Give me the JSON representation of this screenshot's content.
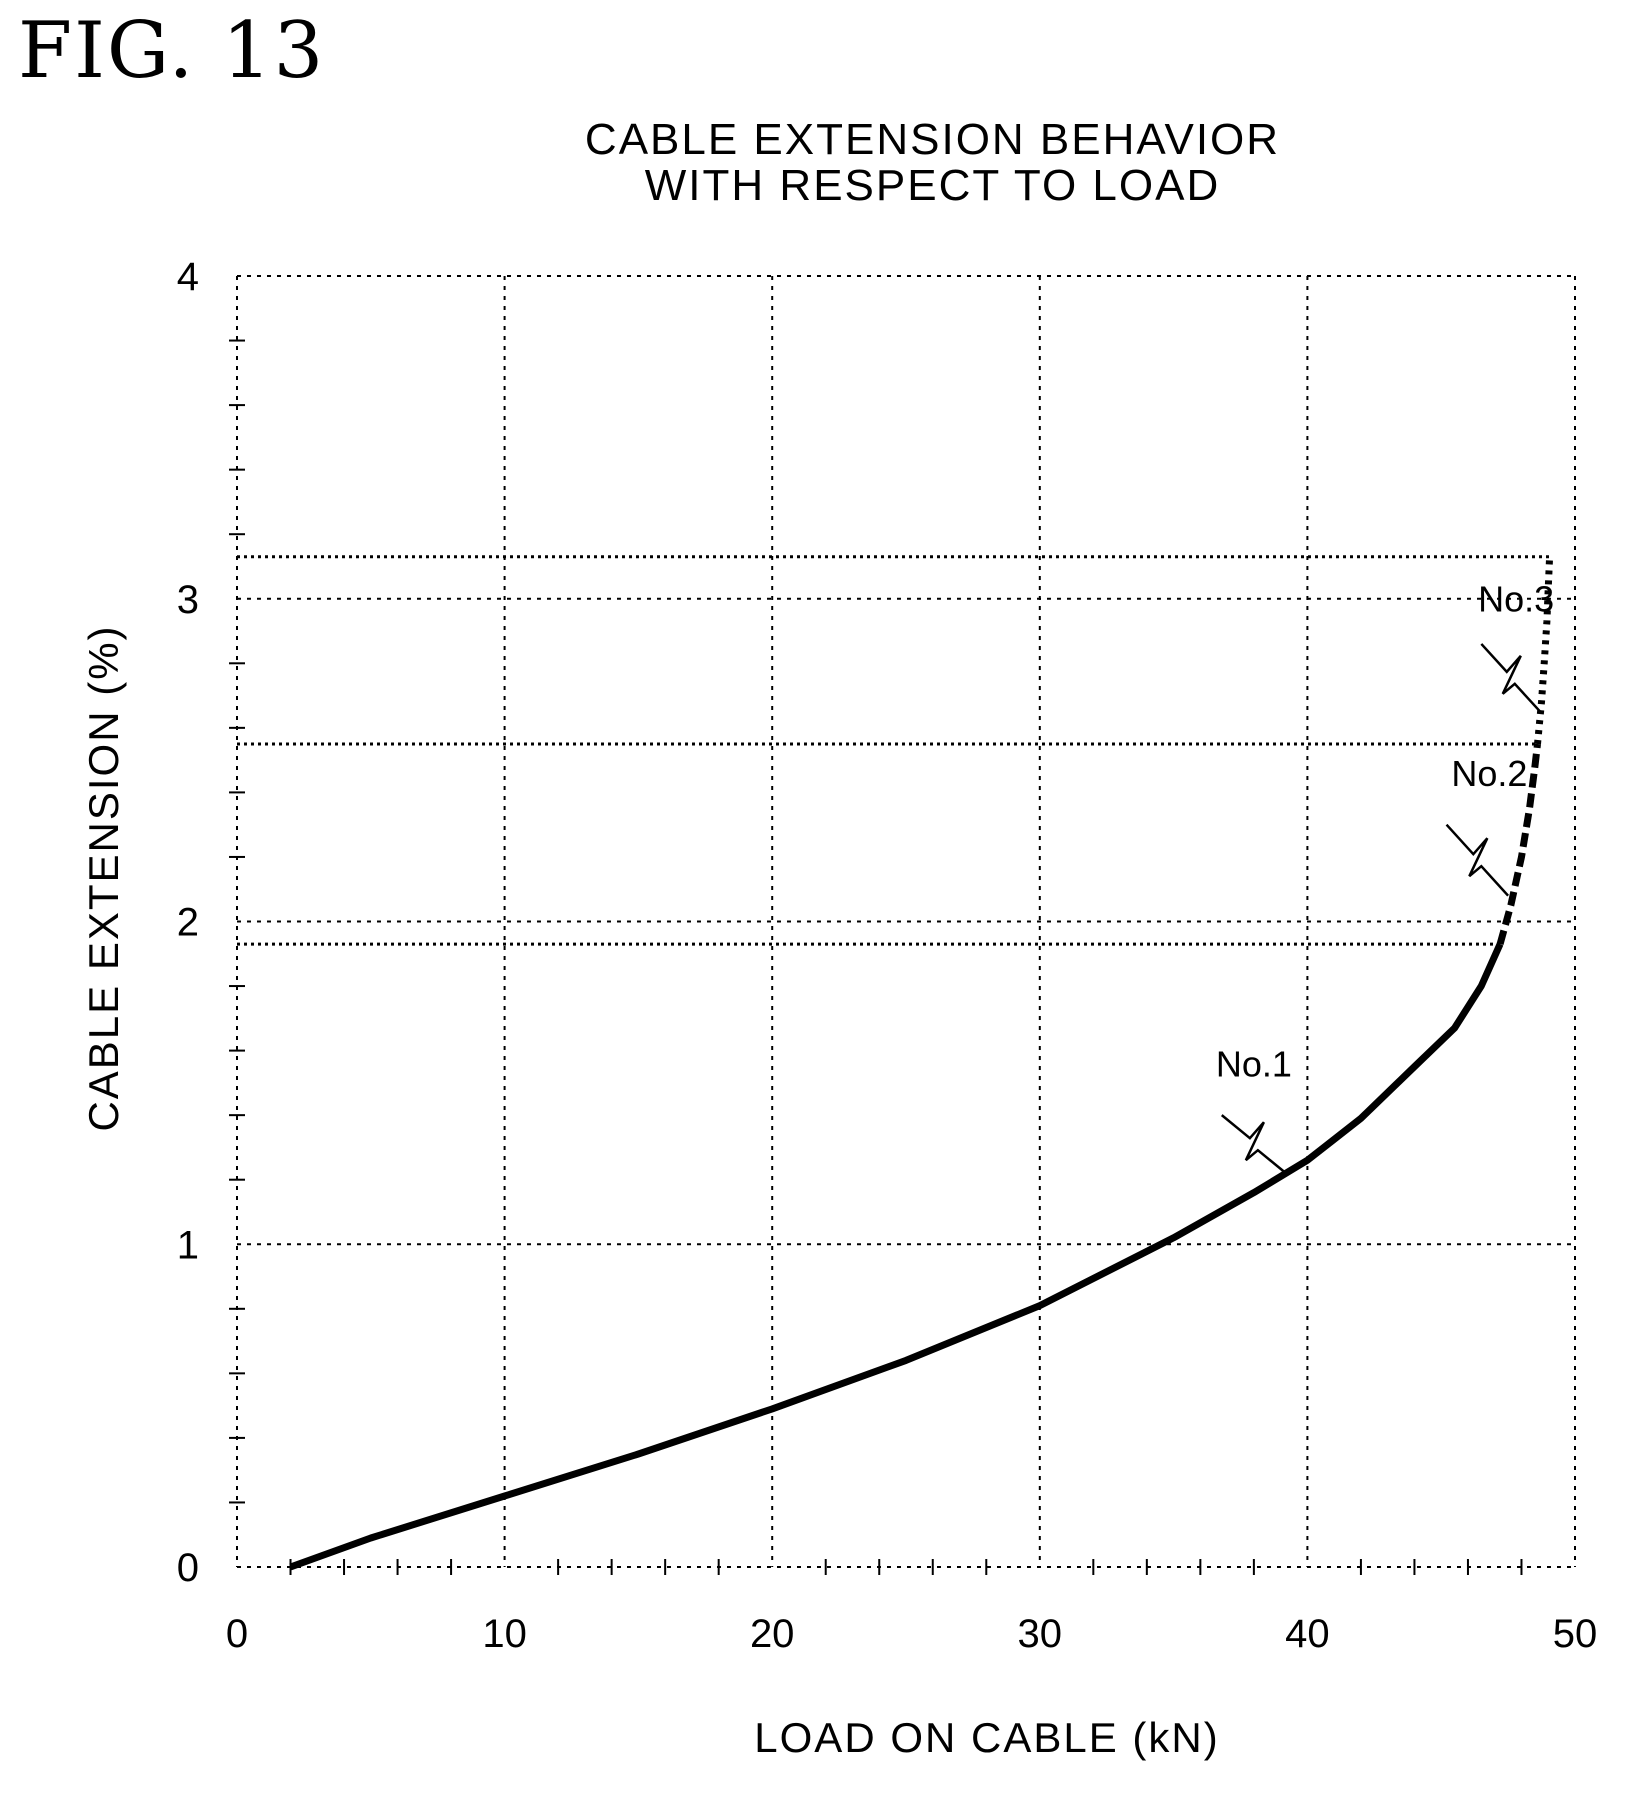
{
  "figure_label": "FIG. 13",
  "chart_data": {
    "type": "line",
    "title_line1": "CABLE EXTENSION BEHAVIOR",
    "title_line2": "WITH RESPECT TO LOAD",
    "xlabel": "LOAD ON CABLE (kN)",
    "ylabel": "CABLE EXTENSION (%)",
    "xlim": [
      0,
      50
    ],
    "ylim": [
      0,
      4
    ],
    "xticks": [
      0,
      10,
      20,
      30,
      40,
      50
    ],
    "yticks": [
      0,
      1,
      2,
      3,
      4
    ],
    "grid": true,
    "reference_lines_y": [
      1.93,
      2.55,
      3.13
    ],
    "series": [
      {
        "name": "No.1",
        "style": "solid",
        "x": [
          2,
          5,
          10,
          15,
          20,
          25,
          30,
          35,
          38,
          40,
          42,
          44,
          45.5,
          46.5,
          47.2
        ],
        "y": [
          0,
          0.09,
          0.22,
          0.35,
          0.49,
          0.64,
          0.81,
          1.02,
          1.16,
          1.26,
          1.39,
          1.55,
          1.67,
          1.8,
          1.93
        ]
      },
      {
        "name": "No.2",
        "style": "dashed",
        "x": [
          47.2,
          47.6,
          48.0,
          48.3,
          48.5,
          48.6
        ],
        "y": [
          1.93,
          2.05,
          2.2,
          2.35,
          2.48,
          2.55
        ]
      },
      {
        "name": "No.3",
        "style": "dotted",
        "x": [
          48.6,
          48.75,
          48.85,
          48.95,
          49.0,
          49.05
        ],
        "y": [
          2.55,
          2.68,
          2.8,
          2.93,
          3.03,
          3.13
        ]
      }
    ]
  }
}
